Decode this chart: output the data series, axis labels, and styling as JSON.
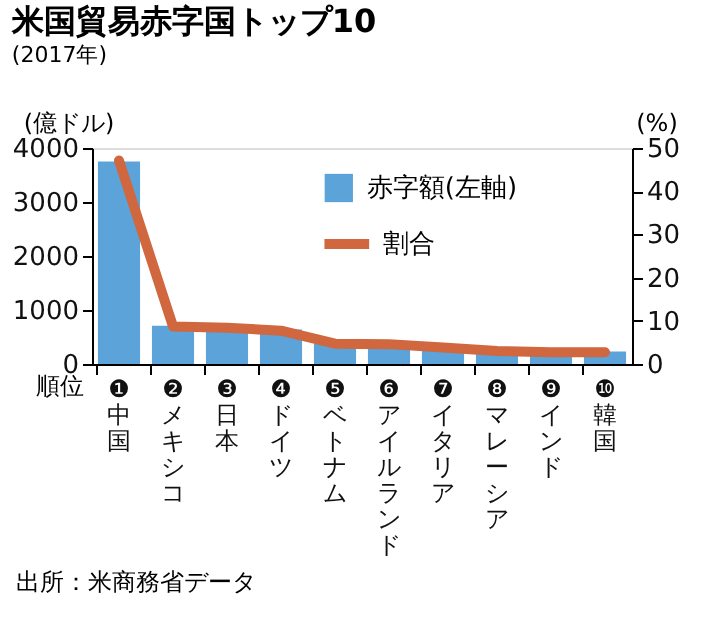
{
  "chart_data": {
    "type": "bar",
    "title": "米国貿易赤字国トップ10",
    "subtitle": "(2017年)",
    "ylabel": "(億ドル)",
    "y2label": "(%)",
    "categories": [
      "❶中国",
      "❷メキシコ",
      "❸日本",
      "❹ドイツ",
      "❺ベトナム",
      "❻アイルランド",
      "❼イタリア",
      "❽マレーシア",
      "❾インド",
      "❿韓国"
    ],
    "series": [
      {
        "name": "赤字額(左軸)",
        "color": "#5ba3d9",
        "values": [
          3750,
          710,
          690,
          640,
          380,
          380,
          320,
          250,
          230,
          230
        ]
      },
      {
        "name": "割合",
        "type": "line",
        "axis": "y2",
        "color": "#d0673f",
        "values": [
          47.1,
          8.7,
          8.4,
          7.7,
          4.7,
          4.6,
          3.8,
          3.0,
          2.7,
          2.7
        ]
      }
    ],
    "ylim": [
      0,
      4000
    ],
    "yticks": [
      0,
      1000,
      2000,
      3000,
      4000
    ],
    "y2lim": [
      0,
      50
    ],
    "y2ticks": [
      0,
      10,
      20,
      30,
      40,
      50
    ],
    "grid": false,
    "legend": "top",
    "marker": "none",
    "line_style": "solid",
    "annotations": [
      "順位",
      "出所：米商務省データ"
    ]
  }
}
